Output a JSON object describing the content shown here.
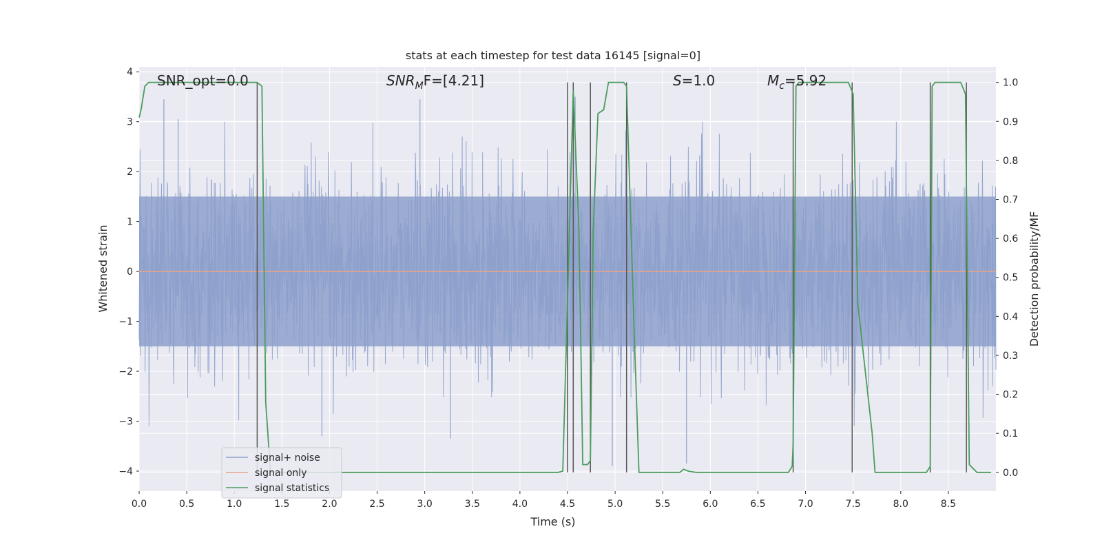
{
  "chart_data": {
    "type": "line",
    "title": "stats at each timestep for test data 16145 [signal=0]",
    "xlabel": "Time (s)",
    "ylabel": "Whitened strain",
    "y2label": "Detection probability/MF",
    "xlim": [
      0.0,
      9.0
    ],
    "ylim": [
      -4.4,
      4.1
    ],
    "y2lim": [
      -0.048,
      1.04
    ],
    "xticks": [
      "0.0",
      "0.5",
      "1.0",
      "1.5",
      "2.0",
      "2.5",
      "3.0",
      "3.5",
      "4.0",
      "4.5",
      "5.0",
      "5.5",
      "6.0",
      "6.5",
      "7.0",
      "7.5",
      "8.0",
      "8.5"
    ],
    "yticks": [
      "4",
      "3",
      "2",
      "1",
      "0",
      "−1",
      "−2",
      "−3",
      "−4"
    ],
    "y2ticks": [
      "1.0",
      "0.9",
      "0.8",
      "0.7",
      "0.6",
      "0.5",
      "0.4",
      "0.3",
      "0.2",
      "0.1",
      "0.0"
    ],
    "grid": true,
    "legend_position": "lower-left",
    "annotations": {
      "snr_opt": "SNR_opt=0.0",
      "snr_mf_base": "SNR",
      "snr_mf_sub": "M",
      "snr_mf_tail": "F=[4.21]",
      "s_var": "S",
      "s_val": "=1.0",
      "mc_base": "M",
      "mc_sub": "c",
      "mc_val": "=5.92"
    },
    "colors": {
      "noise": "#8da0cb",
      "signal_only": "#e8a58a",
      "statistics": "#4a9d5b",
      "vlines": "#555555",
      "background": "#eaeaf2"
    },
    "series": [
      {
        "name": "signal+ noise",
        "note": "dense whitened strain noise, amplitude roughly between -3.4 and 3.5",
        "envelope_typical": [
          -1.5,
          1.5
        ],
        "extreme_peaks": [
          [
            0.26,
            3.45
          ],
          [
            0.41,
            3.05
          ],
          [
            2.95,
            3.45
          ],
          [
            4.58,
            3.5
          ],
          [
            5.75,
            -3.85
          ],
          [
            4.97,
            -3.9
          ],
          [
            1.92,
            -3.3
          ],
          [
            3.27,
            -3.35
          ]
        ]
      },
      {
        "name": "signal only",
        "x": [
          0.0,
          9.0
        ],
        "y": [
          0.0,
          0.0
        ]
      },
      {
        "name": "signal statistics",
        "axis": "right",
        "x": [
          0.0,
          0.02,
          0.06,
          0.1,
          0.15,
          0.3,
          0.6,
          0.9,
          1.2,
          1.24,
          1.29,
          1.33,
          1.38,
          1.5,
          2.0,
          3.0,
          4.0,
          4.4,
          4.45,
          4.5,
          4.56,
          4.62,
          4.66,
          4.71,
          4.74,
          4.77,
          4.82,
          4.88,
          4.93,
          4.98,
          5.05,
          5.09,
          5.12,
          5.2,
          5.25,
          5.4,
          5.68,
          5.72,
          5.77,
          5.85,
          6.5,
          6.82,
          6.86,
          6.87,
          6.9,
          6.93,
          7.0,
          7.3,
          7.45,
          7.5,
          7.55,
          7.7,
          7.73,
          7.8,
          8.0,
          8.27,
          8.31,
          8.33,
          8.36,
          8.5,
          8.63,
          8.68,
          8.72,
          8.8,
          8.95
        ],
        "y": [
          0.91,
          0.93,
          0.99,
          1.0,
          1.0,
          1.0,
          1.0,
          1.0,
          1.0,
          1.0,
          0.99,
          0.18,
          0.0,
          0.0,
          0.0,
          0.0,
          0.0,
          0.0,
          0.003,
          0.44,
          0.98,
          0.62,
          0.02,
          0.02,
          0.03,
          0.62,
          0.92,
          0.93,
          1.0,
          1.0,
          1.0,
          1.0,
          0.99,
          0.36,
          0.0,
          0.0,
          0.0,
          0.008,
          0.003,
          0.0,
          0.0,
          0.0,
          0.016,
          0.075,
          0.99,
          1.0,
          1.0,
          1.0,
          1.0,
          0.97,
          0.43,
          0.1,
          0.0,
          0.0,
          0.0,
          0.0,
          0.015,
          0.99,
          1.0,
          1.0,
          1.0,
          0.97,
          0.02,
          0.0,
          0.0
        ]
      }
    ],
    "vertical_lines_x": [
      1.24,
      4.5,
      4.56,
      4.74,
      5.12,
      6.87,
      7.49,
      8.31,
      8.69
    ]
  }
}
